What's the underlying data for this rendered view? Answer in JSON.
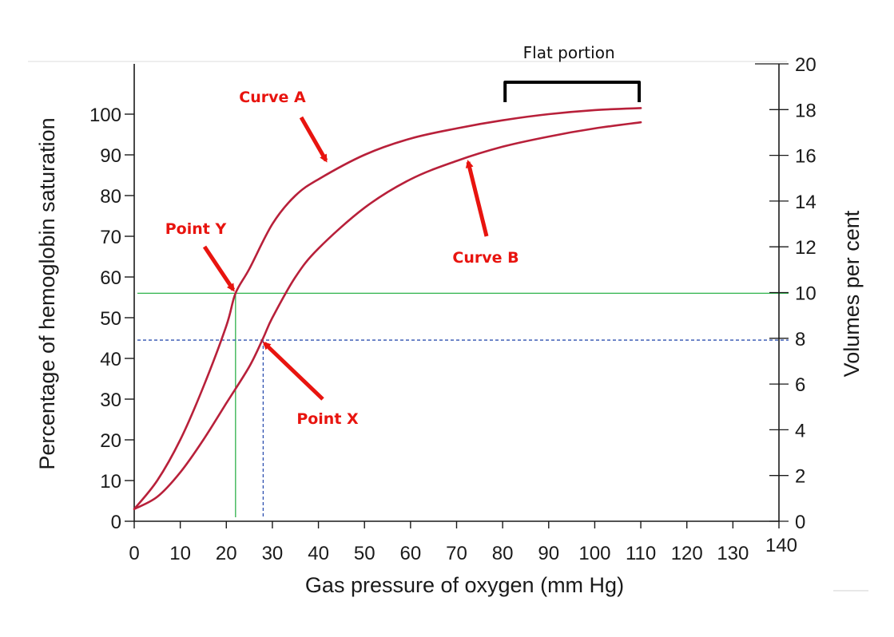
{
  "chart_data": {
    "type": "line",
    "title": "",
    "xlabel": "Gas pressure of oxygen (mm Hg)",
    "ylabel": "Percentage of hemoglobin saturation",
    "y2label": "Volumes per cent",
    "xlim": [
      0,
      140
    ],
    "ylim": [
      0,
      100
    ],
    "y2lim": [
      0,
      20
    ],
    "xticks": [
      0,
      10,
      20,
      30,
      40,
      50,
      60,
      70,
      80,
      90,
      100,
      110,
      120,
      130,
      140
    ],
    "yticks": [
      0,
      10,
      20,
      30,
      40,
      50,
      60,
      70,
      80,
      90,
      100
    ],
    "y2ticks": [
      0,
      2,
      4,
      6,
      8,
      10,
      12,
      14,
      16,
      18,
      20
    ],
    "grid": false,
    "colors": {
      "curve": "#b8203a",
      "annotation": "#e8140f",
      "green_line": "#2db24a",
      "blue_line": "#2e50b0"
    },
    "series": [
      {
        "name": "Curve A",
        "x": [
          0,
          5,
          10,
          15,
          20,
          22,
          25,
          30,
          35,
          40,
          50,
          60,
          70,
          80,
          90,
          100,
          110
        ],
        "y": [
          3,
          10,
          20,
          33,
          48,
          56,
          62,
          73,
          80,
          84,
          90,
          94,
          96.5,
          98.5,
          100,
          101,
          101.5
        ]
      },
      {
        "name": "Curve B",
        "x": [
          0,
          5,
          10,
          15,
          20,
          25,
          28,
          30,
          35,
          40,
          50,
          60,
          70,
          80,
          90,
          100,
          110
        ],
        "y": [
          3,
          6,
          12,
          20,
          29,
          38,
          45,
          50,
          60,
          67,
          77,
          84,
          88.5,
          92,
          94.5,
          96.5,
          98
        ]
      }
    ],
    "reference_lines": [
      {
        "orientation": "horizontal",
        "value": 56,
        "style": "solid",
        "color": "green"
      },
      {
        "orientation": "vertical",
        "value": 22,
        "style": "solid",
        "color": "green"
      },
      {
        "orientation": "horizontal",
        "value": 44.5,
        "style": "dashed",
        "color": "blue"
      },
      {
        "orientation": "vertical",
        "value": 28,
        "style": "dashed",
        "color": "blue"
      }
    ],
    "annotations": [
      {
        "text": "Curve A",
        "target": "Curve A",
        "target_x": 41,
        "target_y": 87
      },
      {
        "text": "Curve B",
        "target": "Curve B",
        "target_x": 73,
        "target_y": 88
      },
      {
        "text": "Point Y",
        "target_x": 22,
        "target_y": 56
      },
      {
        "text": "Point X",
        "target_x": 28,
        "target_y": 44.5
      },
      {
        "text": "Flat portion",
        "range_x": [
          84,
          110
        ]
      }
    ]
  }
}
